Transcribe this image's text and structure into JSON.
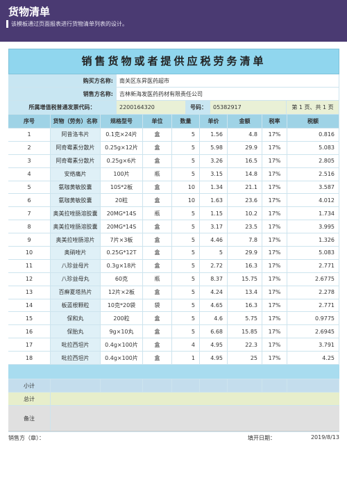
{
  "header": {
    "title": "货物清单",
    "description": "该模板通过页面报表进行货物清单列表的设计。"
  },
  "doc": {
    "title": "销售货物或者提供应税劳务清单",
    "buyer_label": "购买方名称:",
    "buyer_value": "南关区东昇医药超市",
    "seller_label": "销售方名称:",
    "seller_value": "吉林新海发医药药材有限责任公司",
    "code_label": "所属增值税普通发票代码：",
    "code_value": "2200164320",
    "number_label": "号码：",
    "number_value": "05382917",
    "page_info": "第 1 页、共 1 页"
  },
  "table": {
    "headers": [
      "序号",
      "货物（劳务）名称",
      "规格型号",
      "单位",
      "数量",
      "单价",
      "金额",
      "税率",
      "税额"
    ],
    "rows": [
      [
        "1",
        "阿昔洛韦片",
        "0.1克×24片",
        "盒",
        "5",
        "1.56",
        "4.8",
        "17%",
        "0.816"
      ],
      [
        "2",
        "阿奇霉素分散片",
        "0.25g×12片",
        "盒",
        "5",
        "5.98",
        "29.9",
        "17%",
        "5.083"
      ],
      [
        "3",
        "阿奇霉素分散片",
        "0.25g×6片",
        "盒",
        "5",
        "3.26",
        "16.5",
        "17%",
        "2.805"
      ],
      [
        "4",
        "安络痛片",
        "100片",
        "瓶",
        "5",
        "3.15",
        "14.8",
        "17%",
        "2.516"
      ],
      [
        "5",
        "氨咖黄敏胶囊",
        "10S*2板",
        "盒",
        "10",
        "1.34",
        "21.1",
        "17%",
        "3.587"
      ],
      [
        "6",
        "氨咖黄敏胶囊",
        "20粒",
        "盒",
        "10",
        "1.63",
        "23.6",
        "17%",
        "4.012"
      ],
      [
        "7",
        "奥美拉唑肠溶胶囊",
        "20MG*14S",
        "瓶",
        "5",
        "1.15",
        "10.2",
        "17%",
        "1.734"
      ],
      [
        "8",
        "奥美拉唑肠溶胶囊",
        "20MG*14S",
        "盒",
        "5",
        "3.17",
        "23.5",
        "17%",
        "3.995"
      ],
      [
        "9",
        "奥美拉唑肠溶片",
        "7片×3板",
        "盒",
        "5",
        "4.46",
        "7.8",
        "17%",
        "1.326"
      ],
      [
        "10",
        "奥硝唑片",
        "0.25G*12T",
        "盒",
        "5",
        "5",
        "29.9",
        "17%",
        "5.083"
      ],
      [
        "11",
        "八珍益母片",
        "0.3g×18片",
        "盒",
        "5",
        "2.72",
        "16.3",
        "17%",
        "2.771"
      ],
      [
        "12",
        "八珍益母丸",
        "60克",
        "瓶",
        "5",
        "8.37",
        "15.75",
        "17%",
        "2.6775"
      ],
      [
        "13",
        "百癣夏塔热片",
        "12片×2板",
        "盒",
        "5",
        "4.24",
        "13.4",
        "17%",
        "2.278"
      ],
      [
        "14",
        "板蓝根颗粒",
        "10克*20袋",
        "袋",
        "5",
        "4.65",
        "16.3",
        "17%",
        "2.771"
      ],
      [
        "15",
        "保和丸",
        "200粒",
        "盒",
        "5",
        "4.6",
        "5.75",
        "17%",
        "0.9775"
      ],
      [
        "16",
        "保胎丸",
        "9g×10丸",
        "盒",
        "5",
        "6.68",
        "15.85",
        "17%",
        "2.6945"
      ],
      [
        "17",
        "吡拉西坦片",
        "0.4g×100片",
        "盒",
        "4",
        "4.95",
        "22.3",
        "17%",
        "3.791"
      ],
      [
        "18",
        "吡拉西坦片",
        "0.4g×100片",
        "盒",
        "1",
        "4.95",
        "25",
        "17%",
        "4.25"
      ]
    ],
    "subtotal_label": "小计",
    "total_label": "总计",
    "remark_label": "备注"
  },
  "footer": {
    "seller_label": "销售方（章）：",
    "date_label": "填开日期：",
    "date_value": "2019/8/13"
  }
}
